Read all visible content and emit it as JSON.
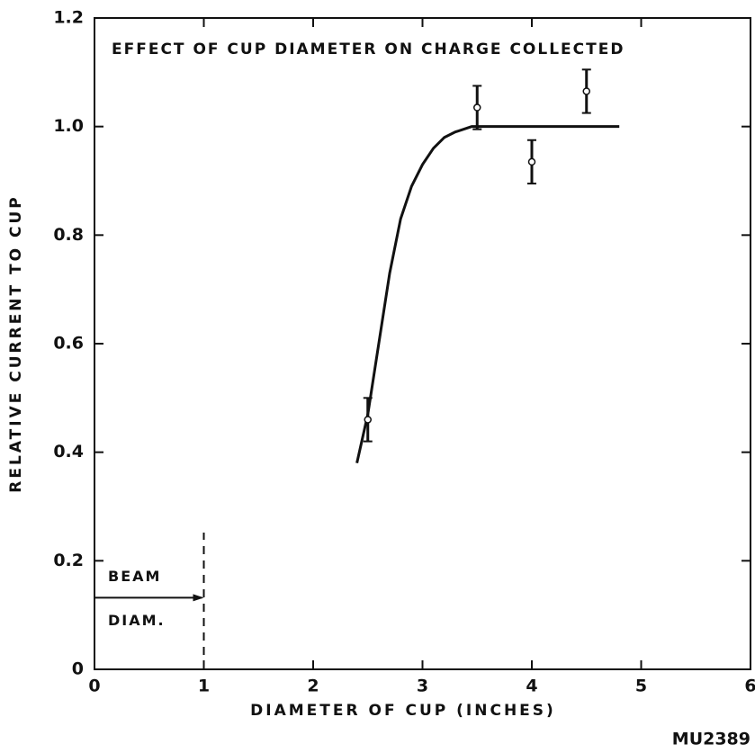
{
  "chart_data": {
    "type": "scatter",
    "title": "EFFECT OF CUP DIAMETER ON CHARGE COLLECTED",
    "x_label": "DIAMETER OF CUP (INCHES)",
    "y_label": "RELATIVE CURRENT TO CUP",
    "figure_id": "MU2389",
    "annotation_lines": [
      "BEAM",
      "DIAM."
    ],
    "beam_diameter": 1,
    "x": [
      2.5,
      3.5,
      4.0,
      4.5
    ],
    "values": [
      0.46,
      1.035,
      0.935,
      1.065
    ],
    "errors": [
      0.04,
      0.04,
      0.04,
      0.04
    ],
    "color": "#111111",
    "curve": {
      "x": [
        2.4,
        2.5,
        2.6,
        2.7,
        2.8,
        2.9,
        3.0,
        3.1,
        3.2,
        3.3,
        3.45,
        4.8
      ],
      "y": [
        0.38,
        0.47,
        0.6,
        0.73,
        0.83,
        0.89,
        0.93,
        0.96,
        0.98,
        0.99,
        1.0,
        1.0
      ]
    },
    "xlim": [
      0,
      6
    ],
    "xticks": [
      0,
      1,
      2,
      3,
      4,
      5,
      6
    ],
    "ylim": [
      0,
      1.2
    ],
    "yticks": [
      0,
      0.2,
      0.4,
      0.6,
      0.8,
      {
        "value": 1,
        "label": "1.0"
      },
      1.2
    ],
    "grid": false
  }
}
